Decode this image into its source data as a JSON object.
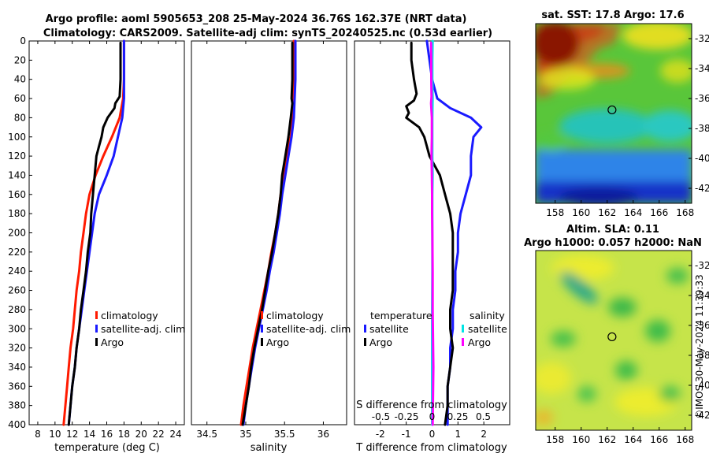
{
  "titles": {
    "line1": "Argo profile: aoml 5905653_208 25-May-2024 36.76S 162.37E (NRT data)",
    "line2": "Climatology: CARS2009. Satellite-adj clim: synTS_20240525.nc (0.53d earlier)",
    "map1": "sat. SST: 17.8 Argo: 17.6",
    "map2_line1": "Altim. SLA: 0.11",
    "map2_line2": "Argo h1000: 0.057 h2000: NaN",
    "stamp": "©IMOS 30-May-2024 11:39:33"
  },
  "colors": {
    "climatology": "#ff1a00",
    "satellite": "#1a1aff",
    "argo": "#000000",
    "salinity_sat": "#00e5e5",
    "salinity_argo": "#ff00ff"
  },
  "depth_axis": {
    "ticks": [
      0,
      20,
      40,
      60,
      80,
      100,
      120,
      140,
      160,
      180,
      200,
      220,
      240,
      260,
      280,
      300,
      320,
      340,
      360,
      380,
      400
    ],
    "range": [
      0,
      400
    ]
  },
  "chart_data": [
    {
      "type": "line",
      "name": "temperature",
      "xlabel": "temperature (deg C)",
      "xlim": [
        7,
        25
      ],
      "xticks": [
        8,
        10,
        12,
        14,
        16,
        18,
        20,
        22,
        24
      ],
      "ylim": [
        400,
        0
      ],
      "legend": {
        "location": "center-right",
        "entries": [
          "climatology",
          "satellite-adj. clim",
          "Argo"
        ]
      },
      "series": [
        {
          "name": "climatology",
          "color": "#ff1a00",
          "depth": [
            0,
            20,
            40,
            60,
            80,
            100,
            120,
            140,
            160,
            180,
            200,
            220,
            240,
            260,
            280,
            300,
            320,
            340,
            360,
            380,
            400
          ],
          "values": [
            18.0,
            18.0,
            18.0,
            17.9,
            17.5,
            16.6,
            15.6,
            14.7,
            14.0,
            13.6,
            13.3,
            13.0,
            12.8,
            12.5,
            12.3,
            12.1,
            11.8,
            11.6,
            11.4,
            11.2,
            11.0
          ]
        },
        {
          "name": "satellite-adj. clim",
          "color": "#1a1aff",
          "depth": [
            0,
            20,
            40,
            60,
            80,
            100,
            120,
            140,
            160,
            180,
            200,
            220,
            240,
            260,
            280,
            300,
            320,
            340,
            360,
            380,
            400
          ],
          "values": [
            18.0,
            18.0,
            18.0,
            18.0,
            17.8,
            17.3,
            16.8,
            16.0,
            15.1,
            14.6,
            14.3,
            14.0,
            13.7,
            13.4,
            13.1,
            12.8,
            12.5,
            12.3,
            12.0,
            11.8,
            11.6
          ]
        },
        {
          "name": "Argo",
          "color": "#000000",
          "depth": [
            2,
            10,
            20,
            40,
            58,
            65,
            70,
            80,
            90,
            100,
            110,
            120,
            140,
            160,
            180,
            200,
            220,
            240,
            260,
            280,
            300,
            320,
            340,
            360,
            380,
            400
          ],
          "values": [
            17.6,
            17.6,
            17.6,
            17.6,
            17.5,
            17.0,
            16.9,
            16.1,
            15.6,
            15.4,
            15.1,
            14.8,
            14.6,
            14.4,
            14.2,
            14.1,
            13.8,
            13.6,
            13.3,
            13.0,
            12.8,
            12.5,
            12.3,
            12.0,
            11.8,
            11.6
          ]
        }
      ]
    },
    {
      "type": "line",
      "name": "salinity",
      "xlabel": "salinity",
      "xlim": [
        34.3,
        36.3
      ],
      "xticks": [
        34.5,
        35,
        35.5,
        36
      ],
      "ylim": [
        400,
        0
      ],
      "legend": {
        "location": "center-right",
        "entries": [
          "climatology",
          "satellite-adj. clim",
          "Argo"
        ]
      },
      "series": [
        {
          "name": "climatology",
          "color": "#ff1a00",
          "depth": [
            0,
            40,
            60,
            80,
            100,
            120,
            140,
            160,
            180,
            200,
            220,
            240,
            260,
            280,
            300,
            320,
            340,
            360,
            380,
            400
          ],
          "values": [
            35.62,
            35.62,
            35.61,
            35.6,
            35.58,
            35.53,
            35.49,
            35.45,
            35.42,
            35.38,
            35.33,
            35.29,
            35.24,
            35.19,
            35.14,
            35.09,
            35.05,
            35.01,
            34.97,
            34.94
          ]
        },
        {
          "name": "satellite-adj. clim",
          "color": "#1a1aff",
          "depth": [
            0,
            20,
            40,
            60,
            80,
            100,
            120,
            140,
            160,
            180,
            200,
            220,
            240,
            260,
            280,
            300,
            320,
            340,
            360,
            380,
            400
          ],
          "values": [
            35.64,
            35.64,
            35.64,
            35.63,
            35.62,
            35.59,
            35.55,
            35.51,
            35.47,
            35.44,
            35.4,
            35.36,
            35.31,
            35.27,
            35.22,
            35.17,
            35.12,
            35.08,
            35.04,
            35.0,
            34.97
          ]
        },
        {
          "name": "Argo",
          "color": "#000000",
          "depth": [
            2,
            20,
            40,
            60,
            65,
            80,
            100,
            120,
            140,
            160,
            180,
            200,
            220,
            240,
            260,
            280,
            300,
            320,
            340,
            360,
            380,
            400
          ],
          "values": [
            35.6,
            35.6,
            35.6,
            35.59,
            35.6,
            35.58,
            35.55,
            35.51,
            35.47,
            35.45,
            35.42,
            35.38,
            35.34,
            35.29,
            35.25,
            35.21,
            35.16,
            35.11,
            35.07,
            35.04,
            35.0,
            34.96
          ]
        }
      ]
    },
    {
      "type": "line",
      "name": "difference",
      "xlabel": "T difference from climatology",
      "xlabel_top": "S difference from climatology",
      "xlim": [
        -3,
        3
      ],
      "xticks": [
        -2,
        -1,
        0,
        1,
        2
      ],
      "xticks_s": [
        "-0.5",
        "-0.25",
        "0",
        "0.25",
        "0.5"
      ],
      "ylim": [
        400,
        0
      ],
      "legend_temperature": {
        "title": "temperature",
        "entries": [
          "satellite",
          "Argo"
        ]
      },
      "legend_salinity": {
        "title": "salinity",
        "entries": [
          "satellite",
          "Argo"
        ]
      },
      "series": [
        {
          "name": "temperature satellite",
          "color": "#1a1aff",
          "depth": [
            0,
            20,
            40,
            60,
            70,
            80,
            90,
            100,
            120,
            140,
            160,
            180,
            200,
            220,
            240,
            260,
            280,
            300,
            320,
            340,
            360,
            380,
            400
          ],
          "values": [
            -0.2,
            -0.1,
            0,
            0.2,
            0.7,
            1.5,
            1.9,
            1.6,
            1.5,
            1.5,
            1.3,
            1.1,
            1.0,
            1.0,
            0.9,
            0.9,
            0.8,
            0.8,
            0.7,
            0.7,
            0.6,
            0.6,
            0.6
          ]
        },
        {
          "name": "temperature Argo",
          "color": "#000000",
          "depth": [
            2,
            20,
            40,
            55,
            62,
            68,
            75,
            80,
            90,
            100,
            110,
            120,
            140,
            160,
            180,
            200,
            220,
            240,
            260,
            280,
            300,
            320,
            340,
            360,
            380,
            400
          ],
          "values": [
            -0.8,
            -0.8,
            -0.7,
            -0.6,
            -0.7,
            -1.0,
            -0.9,
            -1.0,
            -0.5,
            -0.3,
            -0.2,
            -0.1,
            0.3,
            0.5,
            0.7,
            0.8,
            0.8,
            0.8,
            0.8,
            0.7,
            0.7,
            0.8,
            0.7,
            0.6,
            0.6,
            0.5
          ]
        },
        {
          "name": "salinity satellite",
          "color": "#00e5e5",
          "depth": [
            0,
            20,
            40,
            60,
            80,
            100,
            120,
            140,
            160,
            200,
            240,
            280,
            320,
            360,
            400
          ],
          "values": [
            0.02,
            0.01,
            0.01,
            0.02,
            0.01,
            0.01,
            0.01,
            0.02,
            0.01,
            0.01,
            0.01,
            0.0,
            0.0,
            0.0,
            0.0
          ]
        },
        {
          "name": "salinity Argo",
          "color": "#ff00ff",
          "depth": [
            2,
            20,
            40,
            58,
            65,
            80,
            100,
            120,
            140,
            160,
            180,
            200,
            240,
            280,
            300,
            320,
            340,
            360,
            380,
            400
          ],
          "values": [
            -0.04,
            -0.03,
            -0.03,
            -0.02,
            -0.04,
            -0.01,
            -0.01,
            -0.02,
            -0.01,
            0.0,
            0.0,
            0.01,
            0.02,
            0.02,
            0.03,
            0.04,
            0.05,
            0.04,
            0.03,
            0.02
          ]
        }
      ]
    },
    {
      "type": "heatmap",
      "name": "sat-sst-map",
      "title": "sat. SST: 17.8 Argo: 17.6",
      "xticks": [
        158,
        160,
        162,
        164,
        166,
        168
      ],
      "yticks": [
        -32,
        -34,
        -36,
        -38,
        -40,
        -42
      ],
      "xlim": [
        156.5,
        168.5
      ],
      "ylim": [
        -43,
        -31
      ],
      "marker": {
        "lon": 162.37,
        "lat": -36.76
      }
    },
    {
      "type": "heatmap",
      "name": "altimetry-sla-map",
      "title": "Altim. SLA: 0.11",
      "xticks": [
        158,
        160,
        162,
        164,
        166,
        168
      ],
      "yticks": [
        -32,
        -34,
        -36,
        -38,
        -40,
        -42
      ],
      "xlim": [
        156.5,
        168.5
      ],
      "ylim": [
        -43,
        -31
      ],
      "marker": {
        "lon": 162.37,
        "lat": -36.76
      }
    }
  ]
}
